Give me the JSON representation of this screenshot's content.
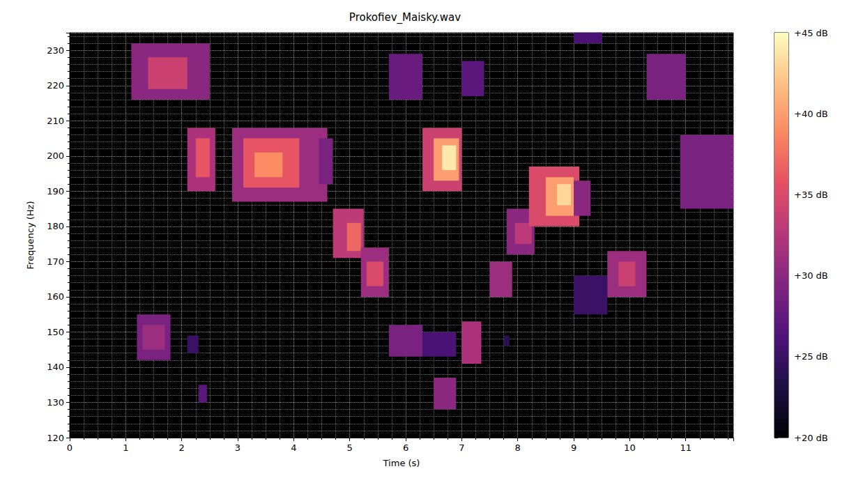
{
  "chart_data": {
    "type": "heatmap",
    "title": "Prokofiev_Maisky.wav",
    "x_label": "Time (s)",
    "y_label": "Frequency (Hz)",
    "xlim": [
      0,
      11.85
    ],
    "ylim": [
      120,
      235
    ],
    "xticks": [
      0,
      1,
      2,
      3,
      4,
      5,
      6,
      7,
      8,
      9,
      10,
      11
    ],
    "yticks": [
      120,
      130,
      140,
      150,
      160,
      170,
      180,
      190,
      200,
      210,
      220,
      230
    ],
    "grid": true,
    "cells": [
      [
        1.1,
        2.5,
        216,
        232,
        30
      ],
      [
        1.4,
        2.1,
        219,
        228,
        34
      ],
      [
        1.2,
        1.8,
        142,
        155,
        29
      ],
      [
        1.3,
        1.7,
        145,
        152,
        31
      ],
      [
        2.1,
        2.3,
        144,
        149,
        25
      ],
      [
        2.3,
        2.45,
        130,
        135,
        27
      ],
      [
        2.1,
        2.6,
        190,
        208,
        32
      ],
      [
        2.25,
        2.5,
        194,
        205,
        36
      ],
      [
        2.9,
        4.6,
        187,
        208,
        31
      ],
      [
        3.1,
        4.1,
        191,
        205,
        36
      ],
      [
        3.3,
        3.8,
        194,
        201,
        39
      ],
      [
        4.45,
        4.7,
        192,
        205,
        29
      ],
      [
        4.7,
        5.25,
        171,
        185,
        33
      ],
      [
        4.95,
        5.2,
        173,
        181,
        37
      ],
      [
        5.2,
        5.7,
        160,
        174,
        31
      ],
      [
        5.3,
        5.6,
        163,
        170,
        35
      ],
      [
        5.7,
        6.3,
        143,
        152,
        29
      ],
      [
        6.3,
        6.9,
        143,
        150,
        26
      ],
      [
        5.7,
        6.3,
        216,
        229,
        28
      ],
      [
        6.5,
        6.9,
        128,
        137,
        30
      ],
      [
        6.3,
        7.0,
        190,
        208,
        34
      ],
      [
        6.5,
        6.95,
        193,
        205,
        40
      ],
      [
        6.65,
        6.9,
        196,
        203,
        44
      ],
      [
        7.0,
        7.35,
        141,
        153,
        32
      ],
      [
        7.0,
        7.4,
        217,
        227,
        27
      ],
      [
        7.5,
        7.9,
        160,
        170,
        31
      ],
      [
        7.8,
        8.3,
        172,
        185,
        30
      ],
      [
        7.95,
        8.25,
        175,
        181,
        33
      ],
      [
        8.2,
        9.1,
        180,
        197,
        35
      ],
      [
        8.5,
        9.0,
        183,
        194,
        40
      ],
      [
        8.7,
        8.95,
        186,
        192,
        43
      ],
      [
        9.0,
        9.3,
        183,
        193,
        30
      ],
      [
        9.0,
        9.6,
        155,
        166,
        25
      ],
      [
        9.6,
        10.3,
        160,
        173,
        31
      ],
      [
        9.8,
        10.1,
        163,
        170,
        34
      ],
      [
        10.3,
        11.0,
        216,
        229,
        29
      ],
      [
        10.9,
        11.85,
        185,
        206,
        29
      ],
      [
        9.0,
        9.5,
        232,
        235,
        26
      ],
      [
        7.75,
        7.85,
        146,
        149,
        24
      ]
    ],
    "colorbar_range": [
      20,
      45
    ],
    "colorbar_ticks": [
      {
        "value": 20,
        "label": "+20 dB"
      },
      {
        "value": 25,
        "label": "+25 dB"
      },
      {
        "value": 30,
        "label": "+30 dB"
      },
      {
        "value": 35,
        "label": "+35 dB"
      },
      {
        "value": 40,
        "label": "+40 dB"
      },
      {
        "value": 45,
        "label": "+45 dB"
      }
    ]
  }
}
